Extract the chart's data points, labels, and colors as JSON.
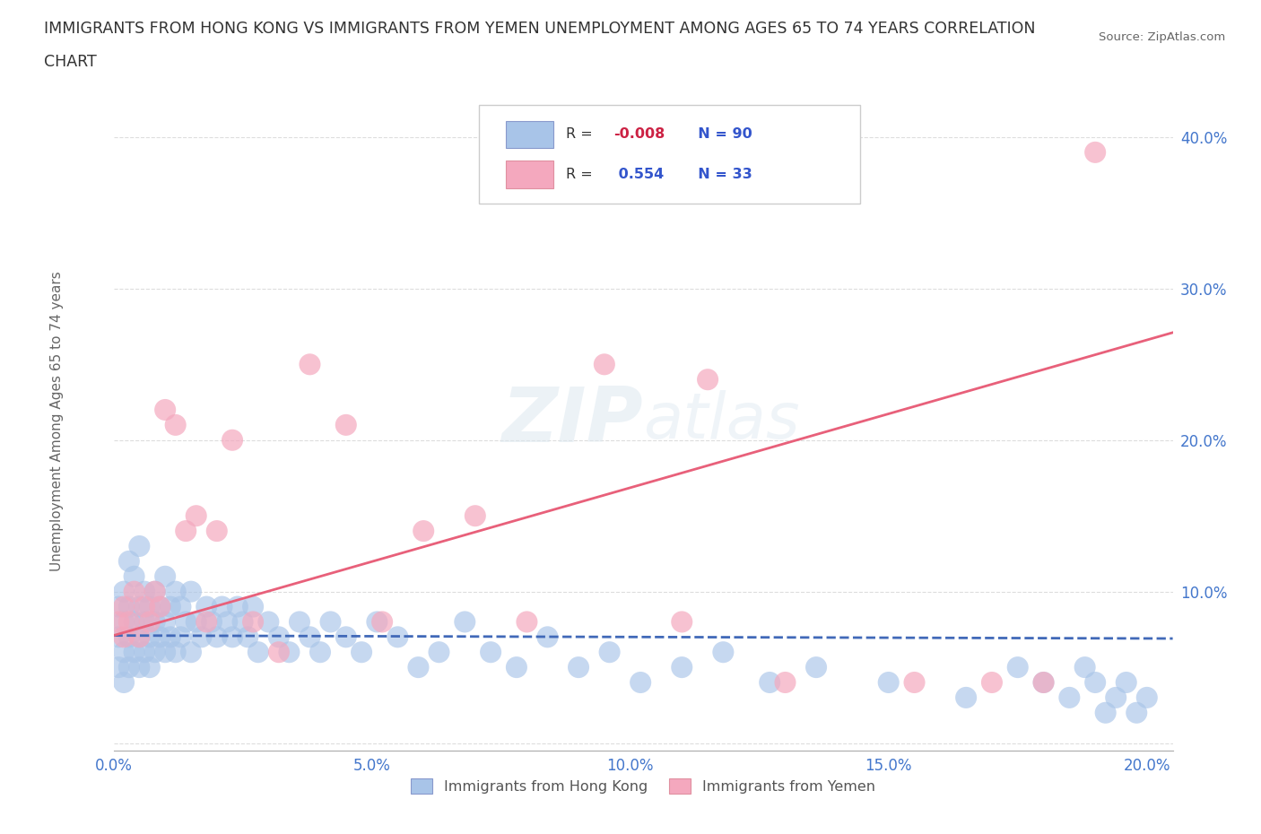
{
  "title_line1": "IMMIGRANTS FROM HONG KONG VS IMMIGRANTS FROM YEMEN UNEMPLOYMENT AMONG AGES 65 TO 74 YEARS CORRELATION",
  "title_line2": "CHART",
  "source": "Source: ZipAtlas.com",
  "ylabel": "Unemployment Among Ages 65 to 74 years",
  "watermark": "ZIPatlas",
  "hk_R": -0.008,
  "hk_N": 90,
  "yemen_R": 0.554,
  "yemen_N": 33,
  "hk_color": "#a8c4e8",
  "yemen_color": "#f4a8be",
  "hk_line_color": "#4169b8",
  "yemen_line_color": "#e8607a",
  "legend_R_color": "#cc2244",
  "legend_N_color": "#3355cc",
  "tick_color": "#4477cc",
  "xlim": [
    0.0,
    0.205
  ],
  "ylim": [
    -0.005,
    0.43
  ],
  "xticks": [
    0.0,
    0.05,
    0.1,
    0.15,
    0.2
  ],
  "yticks": [
    0.0,
    0.1,
    0.2,
    0.3,
    0.4
  ],
  "xticklabels": [
    "0.0%",
    "5.0%",
    "10.0%",
    "15.0%",
    "20.0%"
  ],
  "yticklabels": [
    "",
    "10.0%",
    "20.0%",
    "30.0%",
    "40.0%"
  ],
  "grid_color": "#dddddd",
  "bg_color": "#ffffff",
  "hk_x": [
    0.001,
    0.001,
    0.001,
    0.002,
    0.002,
    0.002,
    0.002,
    0.003,
    0.003,
    0.003,
    0.003,
    0.004,
    0.004,
    0.004,
    0.005,
    0.005,
    0.005,
    0.005,
    0.006,
    0.006,
    0.006,
    0.007,
    0.007,
    0.007,
    0.008,
    0.008,
    0.008,
    0.009,
    0.009,
    0.01,
    0.01,
    0.01,
    0.011,
    0.011,
    0.012,
    0.012,
    0.013,
    0.013,
    0.014,
    0.015,
    0.015,
    0.016,
    0.017,
    0.018,
    0.019,
    0.02,
    0.021,
    0.022,
    0.023,
    0.024,
    0.025,
    0.026,
    0.027,
    0.028,
    0.03,
    0.032,
    0.034,
    0.036,
    0.038,
    0.04,
    0.042,
    0.045,
    0.048,
    0.051,
    0.055,
    0.059,
    0.063,
    0.068,
    0.073,
    0.078,
    0.084,
    0.09,
    0.096,
    0.102,
    0.11,
    0.118,
    0.127,
    0.136,
    0.15,
    0.165,
    0.175,
    0.18,
    0.185,
    0.188,
    0.19,
    0.192,
    0.194,
    0.196,
    0.198,
    0.2
  ],
  "hk_y": [
    0.05,
    0.07,
    0.09,
    0.04,
    0.06,
    0.08,
    0.1,
    0.05,
    0.07,
    0.09,
    0.12,
    0.06,
    0.08,
    0.11,
    0.05,
    0.07,
    0.09,
    0.13,
    0.06,
    0.08,
    0.1,
    0.05,
    0.07,
    0.09,
    0.06,
    0.08,
    0.1,
    0.07,
    0.09,
    0.06,
    0.08,
    0.11,
    0.07,
    0.09,
    0.06,
    0.1,
    0.07,
    0.09,
    0.08,
    0.06,
    0.1,
    0.08,
    0.07,
    0.09,
    0.08,
    0.07,
    0.09,
    0.08,
    0.07,
    0.09,
    0.08,
    0.07,
    0.09,
    0.06,
    0.08,
    0.07,
    0.06,
    0.08,
    0.07,
    0.06,
    0.08,
    0.07,
    0.06,
    0.08,
    0.07,
    0.05,
    0.06,
    0.08,
    0.06,
    0.05,
    0.07,
    0.05,
    0.06,
    0.04,
    0.05,
    0.06,
    0.04,
    0.05,
    0.04,
    0.03,
    0.05,
    0.04,
    0.03,
    0.05,
    0.04,
    0.02,
    0.03,
    0.04,
    0.02,
    0.03
  ],
  "yemen_x": [
    0.001,
    0.002,
    0.002,
    0.003,
    0.004,
    0.005,
    0.006,
    0.007,
    0.008,
    0.009,
    0.01,
    0.012,
    0.014,
    0.016,
    0.018,
    0.02,
    0.023,
    0.027,
    0.032,
    0.038,
    0.045,
    0.052,
    0.06,
    0.07,
    0.08,
    0.095,
    0.11,
    0.13,
    0.155,
    0.17,
    0.18,
    0.19,
    0.115
  ],
  "yemen_y": [
    0.08,
    0.07,
    0.09,
    0.08,
    0.1,
    0.07,
    0.09,
    0.08,
    0.1,
    0.09,
    0.22,
    0.21,
    0.14,
    0.15,
    0.08,
    0.14,
    0.2,
    0.08,
    0.06,
    0.25,
    0.21,
    0.08,
    0.14,
    0.15,
    0.08,
    0.25,
    0.08,
    0.04,
    0.04,
    0.04,
    0.04,
    0.39,
    0.24
  ],
  "hk_line_y0": 0.071,
  "hk_line_y1": 0.069,
  "yemen_line_y0": 0.071,
  "yemen_line_y1": 0.271
}
